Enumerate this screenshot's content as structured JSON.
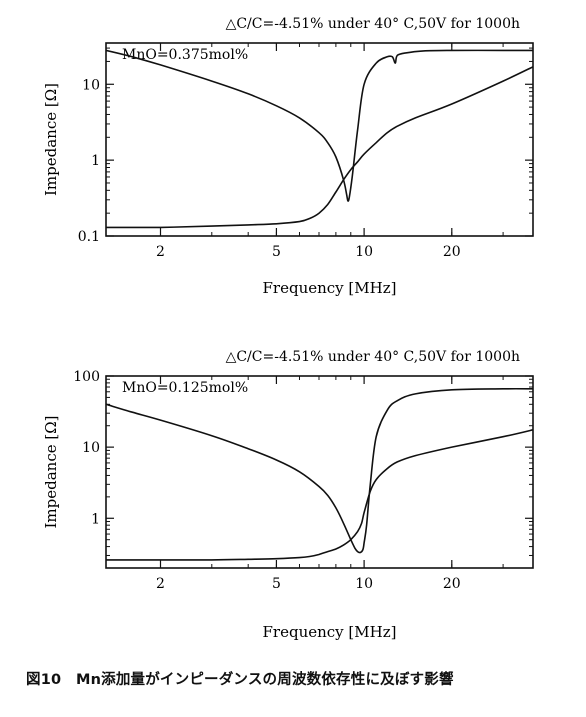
{
  "figure_caption": "図10　Mn添加量がインピーダンスの周波数依存性に及ぼす影響",
  "chart_data": [
    {
      "type": "line",
      "annotation": "△C/C=-4.51% under 40° C,50V for 1000h",
      "legend_text": "MnO=0.375mol%",
      "xlabel": "Frequency [MHz]",
      "ylabel": "Impedance [Ω]",
      "x_scale": "log",
      "y_scale": "log",
      "xlim": [
        1.3,
        38
      ],
      "ylim": [
        0.1,
        35
      ],
      "x_ticks": [
        2,
        5,
        10,
        20
      ],
      "x_tick_labels": [
        "2",
        "5",
        "10",
        "20"
      ],
      "y_ticks": [
        0.1,
        1,
        10
      ],
      "y_tick_labels": [
        "0.1",
        "1",
        "10"
      ],
      "grid": false,
      "series": [
        {
          "x": [
            1.3,
            1.6,
            2,
            3,
            4,
            5,
            6,
            7,
            7.5,
            8,
            8.5,
            8.7,
            8.8,
            8.9,
            9.1,
            9.5,
            10,
            11,
            12,
            12.5,
            12.8,
            13,
            14,
            16,
            20,
            30,
            38
          ],
          "y": [
            28,
            23,
            18,
            11,
            7.5,
            5.2,
            3.6,
            2.3,
            1.7,
            1.1,
            0.55,
            0.36,
            0.29,
            0.33,
            0.6,
            2.5,
            10,
            19,
            23,
            23,
            19,
            24,
            26,
            27.5,
            28,
            28,
            28
          ]
        },
        {
          "x": [
            1.3,
            2,
            3,
            4,
            5,
            6,
            6.5,
            7,
            7.5,
            8,
            8.5,
            9,
            9.5,
            10,
            11,
            12,
            13,
            15,
            20,
            30,
            38
          ],
          "y": [
            0.13,
            0.13,
            0.135,
            0.14,
            0.145,
            0.155,
            0.17,
            0.2,
            0.26,
            0.38,
            0.55,
            0.75,
            0.95,
            1.2,
            1.7,
            2.3,
            2.8,
            3.6,
            5.5,
            11,
            17
          ]
        }
      ]
    },
    {
      "type": "line",
      "annotation": "△C/C=-4.51% under 40° C,50V for 1000h",
      "legend_text": "MnO=0.125mol%",
      "xlabel": "Frequency [MHz]",
      "ylabel": "Impedance [Ω]",
      "x_scale": "log",
      "y_scale": "log",
      "xlim": [
        1.3,
        38
      ],
      "ylim": [
        0.2,
        100
      ],
      "x_ticks": [
        2,
        5,
        10,
        20
      ],
      "x_tick_labels": [
        "2",
        "5",
        "10",
        "20"
      ],
      "y_ticks": [
        1,
        10,
        100
      ],
      "y_tick_labels": [
        "1",
        "10",
        "100"
      ],
      "grid": false,
      "series": [
        {
          "x": [
            1.3,
            1.6,
            2,
            3,
            4,
            5,
            6,
            7,
            7.5,
            8,
            8.5,
            9,
            9.3,
            9.5,
            9.7,
            9.9,
            10,
            10.2,
            10.5,
            11,
            12,
            13,
            15,
            20,
            30,
            38
          ],
          "y": [
            40,
            31,
            24,
            14.5,
            9.5,
            6.6,
            4.5,
            2.8,
            2.1,
            1.4,
            0.85,
            0.5,
            0.38,
            0.34,
            0.33,
            0.36,
            0.45,
            0.8,
            3,
            14,
            33,
            45,
            56,
            64,
            66,
            66
          ]
        },
        {
          "x": [
            1.3,
            2,
            3,
            4,
            5,
            6,
            6.5,
            7,
            7.5,
            8,
            8.5,
            9,
            9.5,
            9.8,
            10,
            10.5,
            11,
            12,
            13,
            15,
            20,
            30,
            38
          ],
          "y": [
            0.26,
            0.26,
            0.26,
            0.265,
            0.27,
            0.28,
            0.29,
            0.31,
            0.34,
            0.37,
            0.42,
            0.5,
            0.65,
            0.85,
            1.2,
            2.4,
            3.5,
            5,
            6.2,
            7.6,
            10,
            14,
            17.5
          ]
        }
      ]
    }
  ]
}
